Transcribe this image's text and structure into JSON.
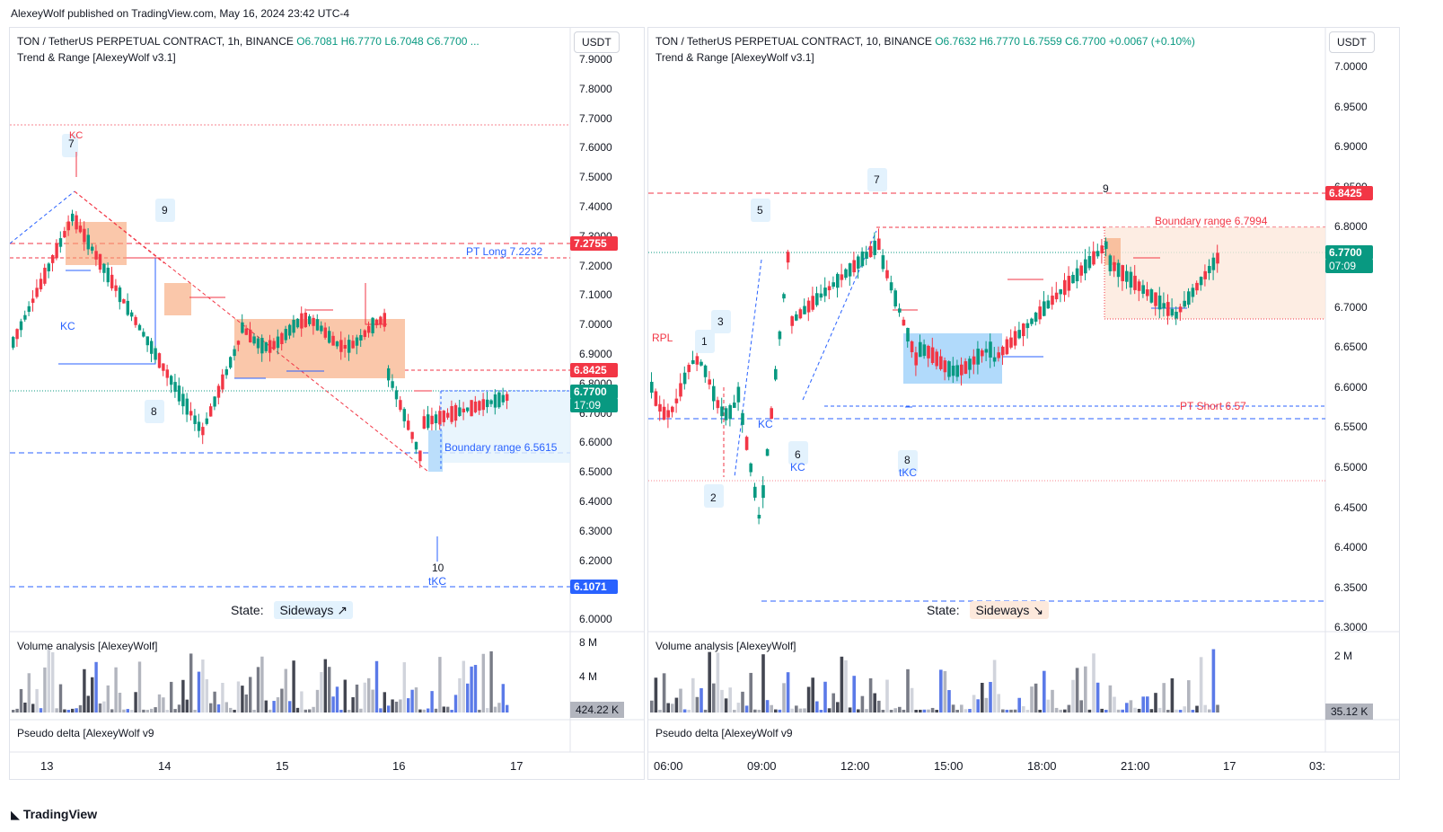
{
  "publisher": "AlexeyWolf published on TradingView.com, May 16, 2024 23:42 UTC-4",
  "brand": "TradingView",
  "colors": {
    "up": "#089981",
    "down": "#f23645",
    "blue": "#2962ff",
    "orange": "#f7a172",
    "lightblue": "#bbdefb"
  },
  "left": {
    "title": "TON / TetherUS PERPETUAL CONTRACT, 1h, BINANCE",
    "o": "O6.7081",
    "h": "H6.7770",
    "l": "L6.7048",
    "c": "C6.7700 ...",
    "indicator": "Trend & Range [AlexeyWolf v3.1]",
    "currency": "USDT",
    "prices": [
      "7.9000",
      "7.8000",
      "7.7000",
      "7.6000",
      "7.5000",
      "7.4000",
      "7.3000",
      "7.2000",
      "7.1000",
      "7.0000",
      "6.9000",
      "6.8000",
      "6.7000",
      "6.6000",
      "6.5000",
      "6.4000",
      "6.3000",
      "6.2000",
      "6.1000",
      "6.0000"
    ],
    "tag_7275": "7.2755",
    "tag_6842": "6.8425",
    "tag_last": "6.7700",
    "tag_time": "17:09",
    "tag_6107": "6.1071",
    "pt_long": "PT Long 7.2232",
    "boundary": "Boundary range 6.5615",
    "state_label": "State:",
    "state_value": "Sideways ↗",
    "marks": {
      "m7": "7",
      "kc1": "KC",
      "m9": "9",
      "kc2": "KC",
      "m8": "8",
      "m10": "10",
      "tkc": "tKC"
    },
    "volume_label": "Volume analysis [AlexeyWolf]",
    "vol_8m": "8 M",
    "vol_4m": "4 M",
    "vol_value": "424.22 K",
    "delta_label": "Pseudo delta [AlexeyWolf v9",
    "dates": [
      "13",
      "14",
      "15",
      "16",
      "17"
    ]
  },
  "right": {
    "title": "TON / TetherUS PERPETUAL CONTRACT, 10, BINANCE",
    "o": "O6.7632",
    "h": "H6.7770",
    "l": "L6.7559",
    "c": "C6.7700",
    "chg": "+0.0067 (+0.10%)",
    "indicator": "Trend & Range [AlexeyWolf v3.1]",
    "currency": "USDT",
    "prices": [
      "7.0000",
      "6.9500",
      "6.9000",
      "6.8500",
      "6.8000",
      "6.7500",
      "6.7000",
      "6.6500",
      "6.6000",
      "6.5500",
      "6.5000",
      "6.4500",
      "6.4000",
      "6.3500",
      "6.3000"
    ],
    "tag_6842": "6.8425",
    "tag_last": "6.7700",
    "tag_time": "07:09",
    "boundary": "Boundary range 6.7994",
    "pt_short": "PT Short 6.57",
    "state_label": "State:",
    "state_value": "Sideways ↘",
    "marks": {
      "m7": "7",
      "m9": "9",
      "m5": "5",
      "m3": "3",
      "m1": "1",
      "rpl": "RPL",
      "m2": "2",
      "m6": "6",
      "kc": "KC",
      "m8": "8",
      "tkc": "tKC",
      "kc0": "KC"
    },
    "volume_label": "Volume analysis [AlexeyWolf]",
    "vol_2m": "2 M",
    "vol_value": "35.12 K",
    "delta_label": "Pseudo delta [AlexeyWolf v9",
    "times": [
      "06:00",
      "09:00",
      "12:00",
      "15:00",
      "18:00",
      "21:00",
      "17",
      "03:"
    ]
  }
}
